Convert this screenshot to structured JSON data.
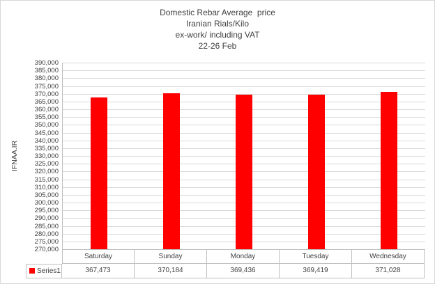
{
  "chart": {
    "title_lines": [
      "Domestic Rebar Average  price",
      "Iranian Rials/Kilo",
      "ex-work/ including VAT",
      "22-26 Feb"
    ],
    "y_axis_title": "IFNAA.IR",
    "colors": {
      "bar": "#ff0000",
      "gridline": "#d9d9d9",
      "axis_line": "#bfbfbf",
      "text": "#404040"
    }
  },
  "chart_data": {
    "type": "bar",
    "title": "Domestic Rebar Average price / Iranian Rials/Kilo / ex-work/ including VAT / 22-26 Feb",
    "ylabel": "IFNAA.IR",
    "categories": [
      "Saturday",
      "Sunday",
      "Monday",
      "Tuesday",
      "Wednesday"
    ],
    "series": [
      {
        "name": "Series1",
        "values": [
          367473,
          370184,
          369436,
          369419,
          371028
        ]
      }
    ],
    "value_labels": [
      "367,473",
      "370,184",
      "369,436",
      "369,419",
      "371,028"
    ],
    "ylim": [
      270000,
      390000
    ],
    "ytick_step": 5000,
    "ytick_format": "#,##0",
    "grid": true,
    "legend_position": "data-table-left",
    "bar_color": "#ff0000"
  }
}
